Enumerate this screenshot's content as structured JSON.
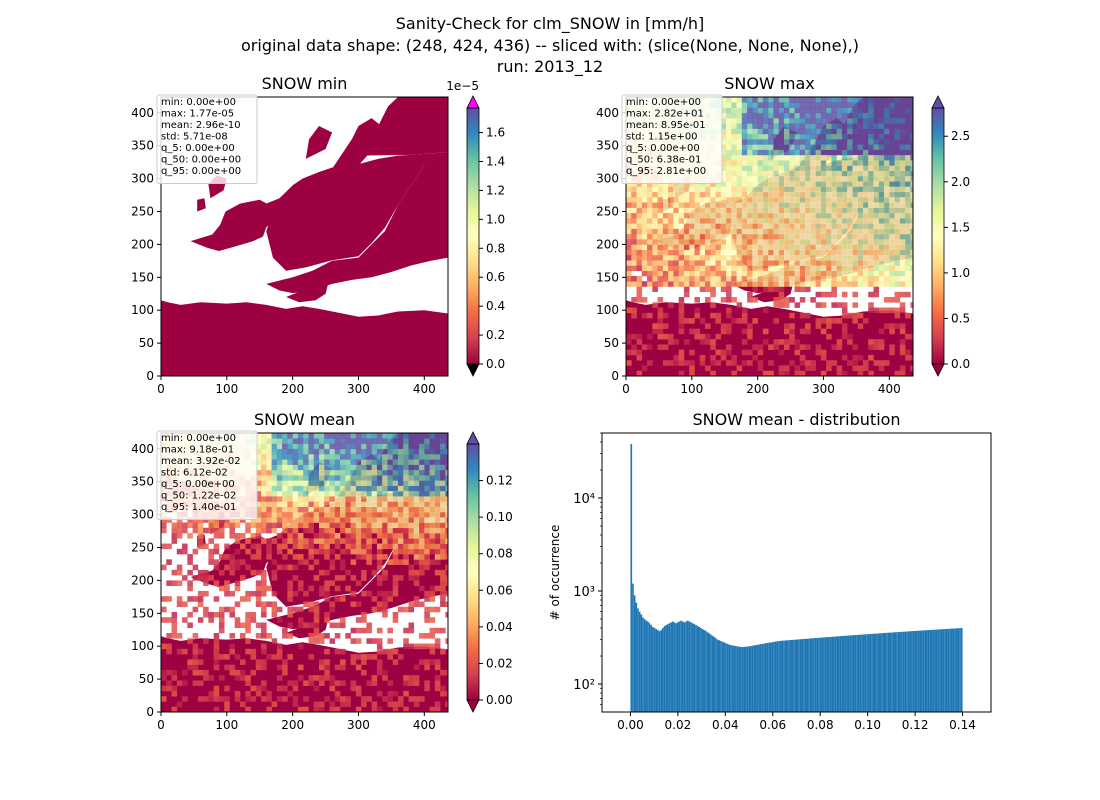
{
  "figure": {
    "title_lines": [
      "Sanity-Check for clm_SNOW in [mm/h]",
      "original data shape: (248, 424, 436) -- sliced with: (slice(None, None, None),)",
      "run: 2013_12"
    ]
  },
  "colors": {
    "cmap": [
      "#9e0142",
      "#d53e4f",
      "#f46d43",
      "#fdae61",
      "#fee08b",
      "#ffffbf",
      "#e6f598",
      "#abdda4",
      "#66c2a5",
      "#3288bd",
      "#5e4fa2"
    ],
    "over_min_panel": "#ff00ff",
    "hist_bar": "#1f77b4"
  },
  "chart_data": [
    {
      "type": "heatmap",
      "title": "SNOW min",
      "xlim": [
        0,
        436
      ],
      "ylim": [
        0,
        424
      ],
      "xticks": [
        0,
        100,
        200,
        300,
        400
      ],
      "yticks": [
        0,
        50,
        100,
        150,
        200,
        250,
        300,
        350,
        400
      ],
      "colorbar": {
        "min": 0,
        "max": 1.77,
        "ticks": [
          "0.0",
          "0.2",
          "0.4",
          "0.6",
          "0.8",
          "1.0",
          "1.2",
          "1.4",
          "1.6"
        ],
        "tick_values": [
          0,
          0.2,
          0.4,
          0.6,
          0.8,
          1.0,
          1.2,
          1.4,
          1.6
        ],
        "offset_text": "1e−5",
        "extend": "both"
      },
      "stats": [
        "min: 0.00e+00",
        "max: 1.77e-05",
        "mean: 2.96e-10",
        "std: 5.71e-08",
        "q_5: 0.00e+00",
        "q_50: 0.00e+00",
        "q_95: 0.00e+00"
      ]
    },
    {
      "type": "heatmap",
      "title": "SNOW max",
      "xlim": [
        0,
        436
      ],
      "ylim": [
        0,
        424
      ],
      "xticks": [
        0,
        100,
        200,
        300,
        400
      ],
      "yticks": [
        0,
        50,
        100,
        150,
        200,
        250,
        300,
        350,
        400
      ],
      "colorbar": {
        "min": 0,
        "max": 2.81,
        "ticks": [
          "0.0",
          "0.5",
          "1.0",
          "1.5",
          "2.0",
          "2.5"
        ],
        "tick_values": [
          0,
          0.5,
          1.0,
          1.5,
          2.0,
          2.5
        ],
        "extend": "both"
      },
      "stats": [
        "min: 0.00e+00",
        "max: 2.82e+01",
        "mean: 8.95e-01",
        "std: 1.15e+00",
        "q_5: 0.00e+00",
        "q_50: 6.38e-01",
        "q_95: 2.81e+00"
      ]
    },
    {
      "type": "heatmap",
      "title": "SNOW mean",
      "xlim": [
        0,
        436
      ],
      "ylim": [
        0,
        424
      ],
      "xticks": [
        0,
        100,
        200,
        300,
        400
      ],
      "yticks": [
        0,
        50,
        100,
        150,
        200,
        250,
        300,
        350,
        400
      ],
      "colorbar": {
        "min": 0,
        "max": 0.14,
        "ticks": [
          "0.00",
          "0.02",
          "0.04",
          "0.06",
          "0.08",
          "0.10",
          "0.12"
        ],
        "tick_values": [
          0,
          0.02,
          0.04,
          0.06,
          0.08,
          0.1,
          0.12
        ],
        "extend": "both"
      },
      "stats": [
        "min: 0.00e+00",
        "max: 9.18e-01",
        "mean: 3.92e-02",
        "std: 6.12e-02",
        "q_5: 0.00e+00",
        "q_50: 1.22e-02",
        "q_95: 1.40e-01"
      ]
    },
    {
      "type": "bar",
      "title": "SNOW mean - distribution",
      "ylabel": "# of occurrence",
      "yscale": "log",
      "xlim": [
        -0.012,
        0.152
      ],
      "ylim": [
        50,
        50000
      ],
      "xticks": [
        "0.00",
        "0.02",
        "0.04",
        "0.06",
        "0.08",
        "0.10",
        "0.12",
        "0.14"
      ],
      "xtick_values": [
        0,
        0.02,
        0.04,
        0.06,
        0.08,
        0.1,
        0.12,
        0.14
      ],
      "yticks": [
        "10²",
        "10³",
        "10⁴"
      ],
      "ytick_values": [
        100,
        1000,
        10000
      ],
      "bin_range": [
        0,
        0.14
      ],
      "bins": 200,
      "counts": [
        38000,
        1200,
        900,
        750,
        650,
        600,
        560,
        520,
        500,
        480,
        470,
        450,
        430,
        410,
        400,
        390,
        380,
        370,
        380,
        400,
        420,
        430,
        440,
        450,
        460,
        470,
        460,
        450,
        460,
        470,
        480,
        470,
        460,
        470,
        480,
        470,
        460,
        450,
        440,
        430,
        420,
        410,
        400,
        390,
        380,
        370,
        360,
        350,
        340,
        330,
        320,
        310,
        300,
        295,
        290,
        285,
        280,
        275,
        270,
        265,
        262,
        260,
        258,
        256,
        254,
        252,
        250,
        250,
        251,
        252,
        253,
        254,
        256,
        258,
        260,
        262,
        264,
        266,
        268,
        270,
        272,
        274,
        276,
        278,
        280,
        282,
        284,
        286,
        288,
        290,
        291,
        292,
        293,
        294,
        295,
        296,
        297,
        298,
        299,
        300,
        301,
        302,
        303,
        304,
        305,
        306,
        307,
        308,
        309,
        310,
        311,
        312,
        313,
        314,
        315,
        316,
        317,
        318,
        319,
        320,
        321,
        322,
        323,
        324,
        325,
        326,
        327,
        328,
        329,
        330,
        331,
        332,
        333,
        334,
        335,
        336,
        337,
        338,
        339,
        340,
        341,
        342,
        343,
        344,
        345,
        346,
        347,
        348,
        349,
        350,
        351,
        352,
        353,
        354,
        355,
        356,
        357,
        358,
        359,
        360,
        361,
        362,
        363,
        364,
        365,
        366,
        367,
        368,
        369,
        370,
        371,
        372,
        373,
        374,
        375,
        376,
        377,
        378,
        379,
        380,
        381,
        382,
        383,
        384,
        385,
        386,
        387,
        388,
        389,
        390,
        391,
        392,
        393,
        394,
        395,
        396,
        397,
        398,
        399,
        400
      ]
    }
  ]
}
